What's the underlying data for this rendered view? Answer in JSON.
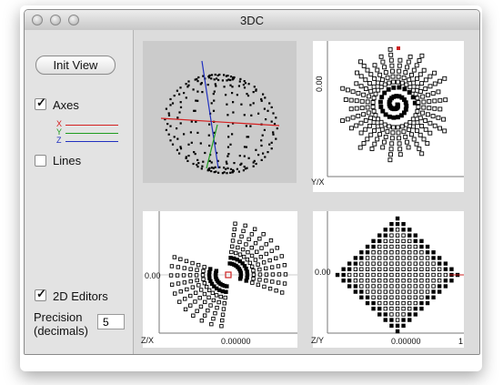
{
  "window": {
    "title": "3DC"
  },
  "left_panel": {
    "init_view_label": "Init View",
    "axes_label": "Axes",
    "axes_checked": true,
    "axis_x": "X",
    "axis_y": "Y",
    "axis_z": "Z",
    "axis_colors": {
      "x": "#d42020",
      "y": "#1f9c1f",
      "z": "#2030c0"
    },
    "lines_label": "Lines",
    "lines_checked": false,
    "editors_label": "2D Editors",
    "editors_checked": true,
    "precision_label_1": "Precision",
    "precision_label_2": "(decimals)",
    "precision_value": "5"
  },
  "views": {
    "yx": {
      "axis_label": "Y/X",
      "side_value": "0.00"
    },
    "zx": {
      "axis_label": "Z/X",
      "side_value": "0.00",
      "bottom_value": "0.00000"
    },
    "zy": {
      "axis_label": "Z/Y",
      "side_value": "0.00",
      "bottom_value": "0.00000",
      "end_value": "1"
    }
  }
}
